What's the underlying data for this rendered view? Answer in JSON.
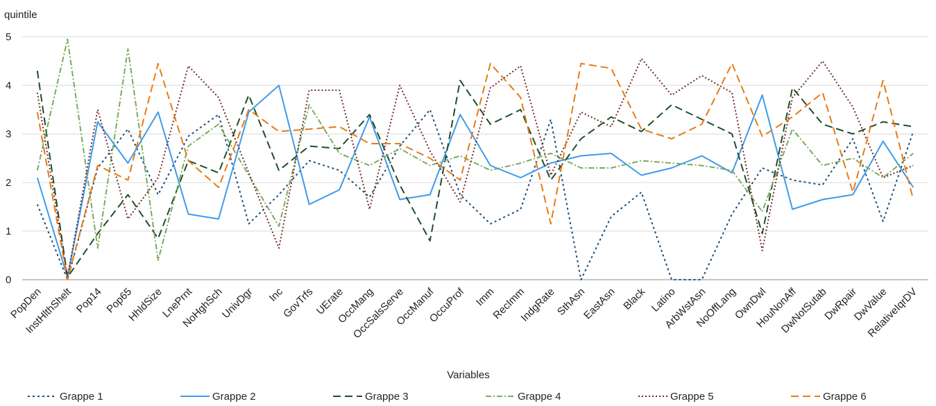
{
  "chart_data": {
    "type": "line",
    "title": "",
    "ylabel": "quintile",
    "xlabel": "Variables",
    "ylim": [
      0,
      5
    ],
    "yticks": [
      0,
      1,
      2,
      3,
      4,
      5
    ],
    "grid": true,
    "legend_position": "bottom",
    "categories": [
      "PopDen",
      "InstHlthShelt",
      "Pop14",
      "Pop65",
      "HhldSize",
      "LnePrnt",
      "NoHghSch",
      "UnivDgr",
      "Inc",
      "GovTrfs",
      "UErate",
      "OccMang",
      "OccSalsServe",
      "OccManuf",
      "OccuProf",
      "Imm",
      "RecImm",
      "IndgRate",
      "SthAsn",
      "EastAsn",
      "Black",
      "Latino",
      "ArbWstAsn",
      "NoOffLang",
      "OwnDwl",
      "HouNonAff",
      "DwNotSutab",
      "DwRpair",
      "DwValue",
      "RelativeIqrDV"
    ],
    "series": [
      {
        "name": "Grappe 1",
        "color": "#1f4e79",
        "dash": "3,4",
        "values": [
          1.55,
          0.0,
          2.3,
          3.1,
          1.75,
          2.95,
          3.4,
          1.15,
          1.75,
          2.45,
          2.25,
          1.7,
          2.75,
          3.5,
          1.75,
          1.15,
          1.45,
          3.3,
          0.0,
          1.3,
          1.8,
          0.0,
          0.0,
          1.35,
          2.3,
          2.05,
          1.95,
          2.9,
          1.2,
          3.05
        ]
      },
      {
        "name": "Grappe 2",
        "color": "#3d9be9",
        "dash": "",
        "values": [
          2.1,
          0.05,
          3.25,
          2.4,
          3.45,
          1.35,
          1.25,
          3.45,
          4.0,
          1.55,
          1.85,
          3.35,
          1.65,
          1.75,
          3.4,
          2.35,
          2.1,
          2.4,
          2.55,
          2.6,
          2.15,
          2.3,
          2.55,
          2.2,
          3.8,
          1.45,
          1.65,
          1.75,
          2.85,
          1.9
        ]
      },
      {
        "name": "Grappe 3",
        "color": "#1e4d2b",
        "dash": "11,6",
        "values": [
          4.3,
          0.05,
          0.95,
          1.75,
          0.85,
          2.45,
          2.2,
          3.8,
          2.25,
          2.75,
          2.7,
          3.4,
          1.95,
          0.8,
          4.1,
          3.2,
          3.5,
          2.05,
          2.9,
          3.35,
          3.05,
          3.6,
          3.3,
          3.0,
          0.95,
          3.95,
          3.2,
          3.0,
          3.25,
          3.15
        ]
      },
      {
        "name": "Grappe 4",
        "color": "#7aaa5b",
        "dash": "8,3,2,3",
        "values": [
          2.25,
          4.95,
          0.65,
          4.75,
          0.4,
          2.75,
          3.2,
          2.15,
          1.1,
          3.6,
          2.6,
          2.35,
          2.7,
          2.35,
          2.55,
          2.25,
          2.4,
          2.6,
          2.3,
          2.3,
          2.45,
          2.4,
          2.35,
          2.25,
          1.4,
          3.1,
          2.35,
          2.5,
          2.1,
          2.6
        ]
      },
      {
        "name": "Grappe 5",
        "color": "#6e2a25",
        "dash": "2,3",
        "values": [
          3.85,
          0.05,
          3.5,
          1.25,
          2.1,
          4.4,
          3.75,
          2.2,
          0.65,
          3.9,
          3.9,
          1.45,
          4.0,
          2.65,
          1.6,
          3.95,
          4.4,
          2.15,
          3.45,
          3.15,
          4.55,
          3.8,
          4.2,
          3.85,
          0.6,
          3.75,
          4.5,
          3.55,
          2.1,
          2.35
        ]
      },
      {
        "name": "Grappe 6",
        "color": "#e57a14",
        "dash": "11,6",
        "values": [
          3.45,
          0.0,
          2.35,
          2.05,
          4.45,
          2.45,
          1.9,
          3.5,
          3.05,
          3.1,
          3.15,
          2.8,
          2.8,
          2.5,
          2.05,
          4.45,
          3.75,
          1.15,
          4.45,
          4.35,
          3.1,
          2.9,
          3.2,
          4.45,
          2.95,
          3.35,
          3.85,
          1.8,
          4.1,
          1.65
        ]
      }
    ]
  }
}
